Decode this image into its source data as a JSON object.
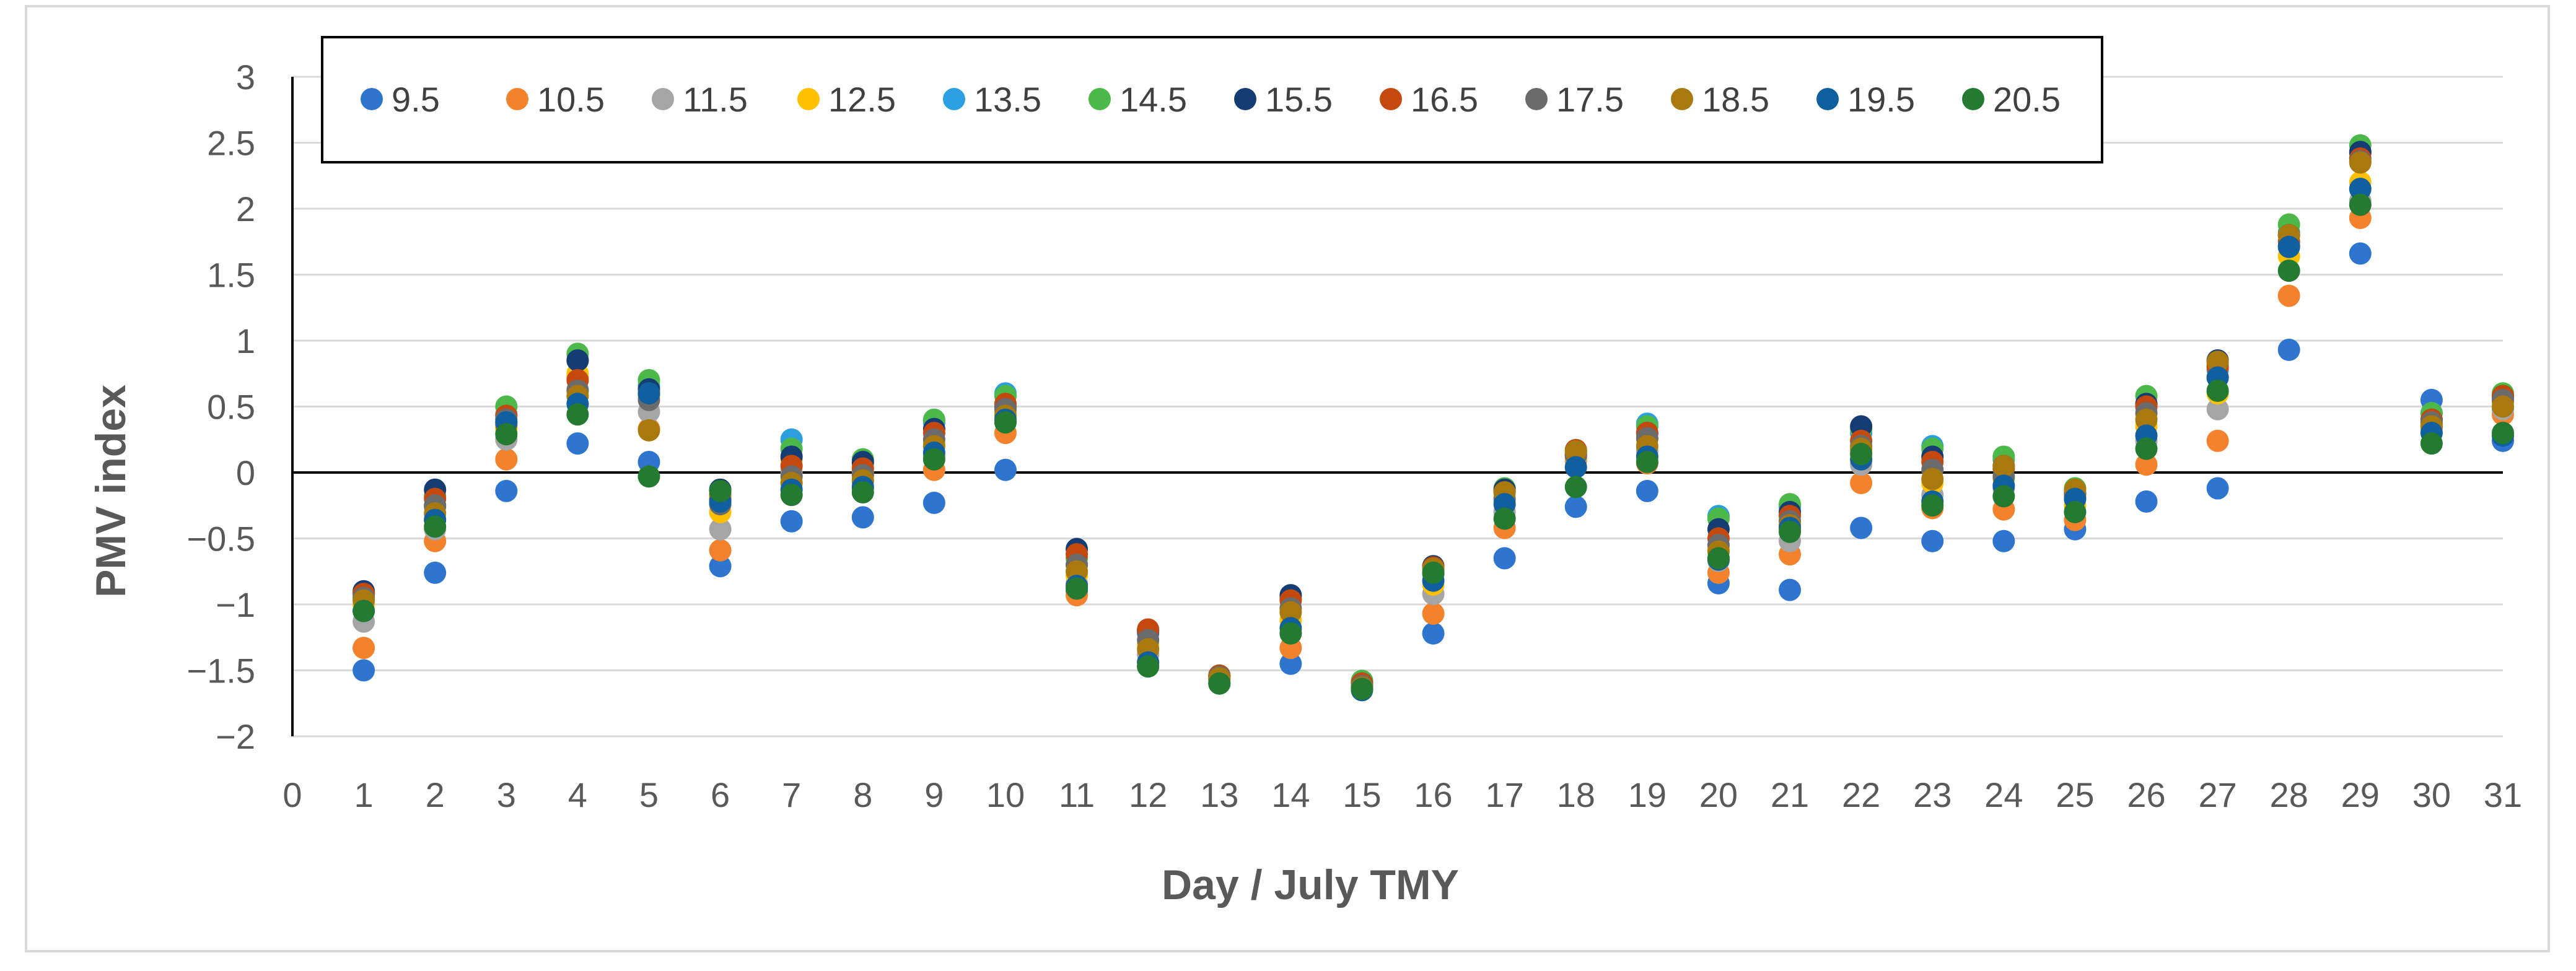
{
  "chart_data": {
    "type": "scatter",
    "title": "",
    "xlabel": "Day / July TMY",
    "ylabel": "PMV index",
    "xlim": [
      0,
      31
    ],
    "ylim": [
      -2,
      3
    ],
    "x_ticks": [
      "0",
      "1",
      "2",
      "3",
      "4",
      "5",
      "6",
      "7",
      "8",
      "9",
      "10",
      "11",
      "12",
      "13",
      "14",
      "15",
      "16",
      "17",
      "18",
      "19",
      "20",
      "21",
      "22",
      "23",
      "24",
      "25",
      "26",
      "27",
      "28",
      "29",
      "30",
      "31"
    ],
    "y_ticks": [
      "3",
      "2.5",
      "2",
      "1.5",
      "1",
      "0.5",
      "0",
      "−0.5",
      "−1",
      "−1.5",
      "−2"
    ],
    "grid": "horizontal",
    "legend_position": "top",
    "x": [
      1,
      2,
      3,
      4,
      5,
      6,
      7,
      8,
      9,
      10,
      11,
      12,
      13,
      14,
      15,
      16,
      17,
      18,
      19,
      20,
      21,
      22,
      23,
      24,
      25,
      26,
      27,
      28,
      29,
      30,
      31
    ],
    "series": [
      {
        "name": "9.5",
        "color": "#2E75D0",
        "values": [
          -1.5,
          -0.76,
          -0.14,
          0.22,
          0.08,
          -0.71,
          -0.37,
          -0.34,
          -0.23,
          0.02,
          -0.9,
          -1.47,
          -1.57,
          -1.45,
          -1.62,
          -1.22,
          -0.65,
          -0.26,
          -0.14,
          -0.84,
          -0.89,
          -0.42,
          -0.52,
          -0.52,
          -0.43,
          -0.22,
          -0.12,
          0.93,
          1.66,
          0.55,
          0.24
        ]
      },
      {
        "name": "10.5",
        "color": "#F4812B",
        "values": [
          -1.33,
          -0.52,
          0.1,
          0.72,
          0.33,
          -0.59,
          -0.08,
          -0.12,
          0.02,
          0.3,
          -0.93,
          -1.44,
          -1.55,
          -1.33,
          -1.6,
          -1.07,
          -0.42,
          0.09,
          0.07,
          -0.76,
          -0.62,
          -0.08,
          -0.27,
          -0.28,
          -0.36,
          0.06,
          0.24,
          1.34,
          1.93,
          0.37,
          0.44
        ]
      },
      {
        "name": "11.5",
        "color": "#A5A5A5",
        "values": [
          -1.13,
          -0.43,
          0.25,
          0.63,
          0.46,
          -0.43,
          0.0,
          -0.07,
          0.12,
          0.38,
          -0.84,
          -1.38,
          -1.55,
          -1.22,
          -1.6,
          -0.92,
          -0.3,
          0.11,
          0.16,
          -0.67,
          -0.52,
          0.06,
          -0.17,
          -0.12,
          -0.3,
          0.24,
          0.48,
          1.53,
          2.06,
          0.33,
          0.48
        ]
      },
      {
        "name": "12.5",
        "color": "#FFC000",
        "values": [
          -1.0,
          -0.35,
          0.33,
          0.75,
          0.58,
          -0.3,
          0.1,
          0.0,
          0.22,
          0.45,
          -0.78,
          -1.3,
          -1.54,
          -1.12,
          -1.6,
          -0.85,
          -0.22,
          0.12,
          0.25,
          -0.58,
          -0.43,
          0.15,
          -0.08,
          -0.05,
          -0.25,
          0.35,
          0.6,
          1.64,
          2.2,
          0.35,
          0.53
        ]
      },
      {
        "name": "13.5",
        "color": "#2AA0E0",
        "values": [
          -0.95,
          -0.26,
          0.44,
          0.85,
          0.66,
          -0.24,
          0.25,
          0.07,
          0.38,
          0.6,
          -0.7,
          -1.22,
          -1.54,
          -0.96,
          -1.58,
          -0.77,
          -0.14,
          0.14,
          0.37,
          -0.33,
          -0.26,
          0.3,
          0.2,
          0.1,
          -0.15,
          0.5,
          0.78,
          1.82,
          2.42,
          0.45,
          0.57
        ]
      },
      {
        "name": "14.5",
        "color": "#4CB849",
        "values": [
          -0.92,
          -0.18,
          0.5,
          0.9,
          0.7,
          -0.17,
          0.18,
          0.1,
          0.4,
          0.58,
          -0.65,
          -1.2,
          -1.54,
          -0.94,
          -1.58,
          -0.72,
          -0.12,
          0.15,
          0.35,
          -0.35,
          -0.24,
          0.33,
          0.18,
          0.12,
          -0.12,
          0.58,
          0.82,
          1.88,
          2.48,
          0.45,
          0.6
        ]
      },
      {
        "name": "15.5",
        "color": "#153D73",
        "values": [
          -0.9,
          -0.13,
          0.38,
          0.85,
          0.63,
          -0.13,
          0.12,
          0.08,
          0.33,
          0.5,
          -0.58,
          -1.2,
          -1.54,
          -0.93,
          -1.6,
          -0.71,
          -0.13,
          0.13,
          0.3,
          -0.43,
          -0.3,
          0.35,
          0.12,
          0.05,
          -0.16,
          0.52,
          0.85,
          1.8,
          2.43,
          0.4,
          0.58
        ]
      },
      {
        "name": "16.5",
        "color": "#C3490F",
        "values": [
          -0.92,
          -0.2,
          0.43,
          0.7,
          0.6,
          -0.2,
          0.05,
          0.03,
          0.3,
          0.52,
          -0.62,
          -1.19,
          -1.54,
          -0.97,
          -1.6,
          -0.72,
          -0.15,
          0.17,
          0.3,
          -0.5,
          -0.33,
          0.24,
          0.08,
          0.03,
          -0.18,
          0.5,
          0.8,
          1.75,
          2.38,
          0.4,
          0.58
        ]
      },
      {
        "name": "17.5",
        "color": "#6B6B6B",
        "values": [
          -0.95,
          -0.25,
          0.4,
          0.62,
          0.55,
          -0.24,
          -0.03,
          -0.02,
          0.25,
          0.48,
          -0.7,
          -1.27,
          -1.55,
          -1.03,
          -1.62,
          -0.76,
          -0.2,
          0.13,
          0.26,
          -0.55,
          -0.37,
          0.2,
          0.02,
          -0.03,
          -0.2,
          0.45,
          0.72,
          1.72,
          2.36,
          0.38,
          0.55
        ]
      },
      {
        "name": "18.5",
        "color": "#A8790F",
        "values": [
          -0.97,
          -0.31,
          0.36,
          0.58,
          0.32,
          -0.17,
          -0.08,
          -0.06,
          0.2,
          0.43,
          -0.75,
          -1.34,
          -1.56,
          -1.06,
          -1.63,
          -0.73,
          -0.15,
          0.16,
          0.2,
          -0.6,
          -0.4,
          0.18,
          -0.05,
          0.05,
          -0.13,
          0.4,
          0.84,
          1.8,
          2.35,
          0.35,
          0.5
        ]
      },
      {
        "name": "19.5",
        "color": "#105F9E",
        "values": [
          -1.05,
          -0.36,
          0.38,
          0.52,
          0.6,
          -0.22,
          -0.13,
          -0.11,
          0.15,
          0.4,
          -0.86,
          -1.44,
          -1.6,
          -1.18,
          -1.65,
          -0.82,
          -0.24,
          0.04,
          0.12,
          -0.66,
          -0.42,
          0.1,
          -0.22,
          -0.1,
          -0.2,
          0.28,
          0.72,
          1.71,
          2.15,
          0.3,
          0.28
        ]
      },
      {
        "name": "20.5",
        "color": "#257A32",
        "values": [
          -1.05,
          -0.41,
          0.29,
          0.44,
          -0.03,
          -0.14,
          -0.17,
          -0.15,
          0.1,
          0.38,
          -0.88,
          -1.47,
          -1.6,
          -1.22,
          -1.64,
          -0.76,
          -0.35,
          -0.11,
          0.08,
          -0.65,
          -0.45,
          0.14,
          -0.25,
          -0.18,
          -0.3,
          0.18,
          0.62,
          1.53,
          2.03,
          0.22,
          0.3
        ]
      }
    ]
  }
}
